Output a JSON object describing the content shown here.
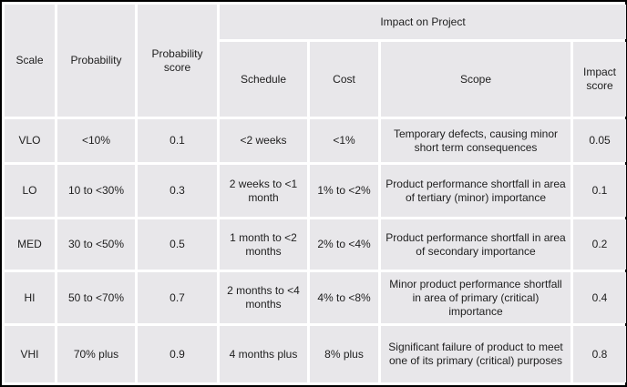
{
  "table": {
    "left_headers": {
      "scale": "Scale",
      "probability": "Probability",
      "probability_score": "Probability score"
    },
    "impact_group_header": "Impact on Project",
    "impact_subheaders": {
      "schedule": "Schedule",
      "cost": "Cost",
      "scope": "Scope",
      "impact_score": "Impact score"
    },
    "rows": [
      {
        "scale": "VLO",
        "probability": "<10%",
        "probability_score": "0.1",
        "schedule": "<2 weeks",
        "cost": "<1%",
        "scope": "Temporary defects, causing minor short term consequences",
        "impact_score": "0.05"
      },
      {
        "scale": "LO",
        "probability": "10 to <30%",
        "probability_score": "0.3",
        "schedule": "2 weeks to <1 month",
        "cost": "1% to <2%",
        "scope": "Product performance shortfall in area of tertiary (minor) importance",
        "impact_score": "0.1"
      },
      {
        "scale": "MED",
        "probability": "30 to <50%",
        "probability_score": "0.5",
        "schedule": "1 month to <2 months",
        "cost": "2% to <4%",
        "scope": "Product performance shortfall in area of secondary importance",
        "impact_score": "0.2"
      },
      {
        "scale": "HI",
        "probability": "50 to <70%",
        "probability_score": "0.7",
        "schedule": "2 months to <4 months",
        "cost": "4% to <8%",
        "scope": "Minor product performance shortfall in area of primary (critical) importance",
        "impact_score": "0.4"
      },
      {
        "scale": "VHI",
        "probability": "70% plus",
        "probability_score": "0.9",
        "schedule": "4 months plus",
        "cost": "8% plus",
        "scope": "Significant failure of product to meet one of its primary (critical) purposes",
        "impact_score": "0.8"
      }
    ],
    "colors": {
      "cell_background": "#e8e7ea",
      "gridline": "#ffffff",
      "frame_border": "#000000",
      "text": "#1e1e1e"
    }
  }
}
